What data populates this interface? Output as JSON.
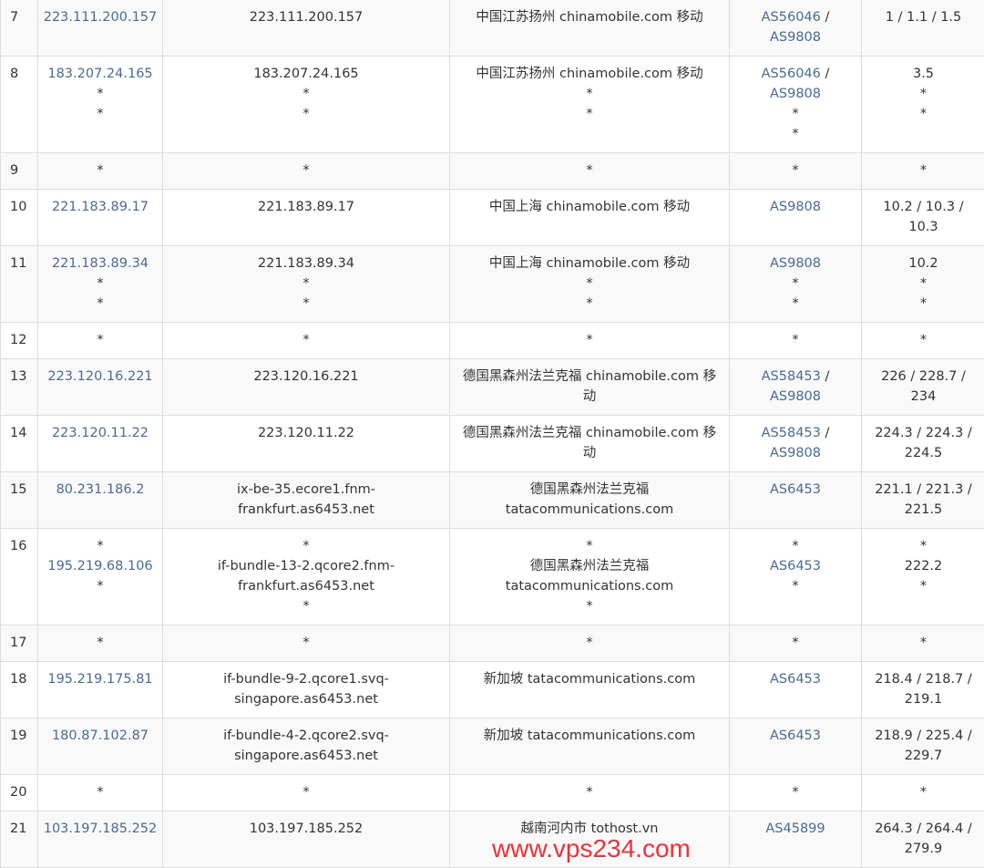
{
  "rows": [
    {
      "hop": "7",
      "ip": [
        "223.111.200.157"
      ],
      "host": [
        "223.111.200.157"
      ],
      "geo": [
        "中国江苏扬州 chinamobile.com 移动"
      ],
      "asn": [
        "AS56046 /",
        "AS9808"
      ],
      "rtt": [
        "1 / 1.1 / 1.5"
      ]
    },
    {
      "hop": "8",
      "ip": [
        "183.207.24.165",
        "*",
        "*"
      ],
      "host": [
        "183.207.24.165",
        "*",
        "*"
      ],
      "geo": [
        "中国江苏扬州 chinamobile.com 移动",
        "*",
        "*"
      ],
      "asn": [
        "AS56046 /",
        "AS9808",
        "*",
        "*"
      ],
      "rtt": [
        "3.5",
        "*",
        "*"
      ]
    },
    {
      "hop": "9",
      "ip": [
        "*"
      ],
      "host": [
        "*"
      ],
      "geo": [
        "*"
      ],
      "asn": [
        "*"
      ],
      "rtt": [
        "*"
      ]
    },
    {
      "hop": "10",
      "ip": [
        "221.183.89.17"
      ],
      "host": [
        "221.183.89.17"
      ],
      "geo": [
        "中国上海 chinamobile.com 移动"
      ],
      "asn": [
        "AS9808"
      ],
      "rtt": [
        "10.2 / 10.3 /",
        "10.3"
      ]
    },
    {
      "hop": "11",
      "ip": [
        "221.183.89.34",
        "*",
        "*"
      ],
      "host": [
        "221.183.89.34",
        "*",
        "*"
      ],
      "geo": [
        "中国上海 chinamobile.com 移动",
        "*",
        "*"
      ],
      "asn": [
        "AS9808",
        "*",
        "*"
      ],
      "rtt": [
        "10.2",
        "*",
        "*"
      ]
    },
    {
      "hop": "12",
      "ip": [
        "*"
      ],
      "host": [
        "*"
      ],
      "geo": [
        "*"
      ],
      "asn": [
        "*"
      ],
      "rtt": [
        "*"
      ]
    },
    {
      "hop": "13",
      "ip": [
        "223.120.16.221"
      ],
      "host": [
        "223.120.16.221"
      ],
      "geo": [
        "德国黑森州法兰克福 chinamobile.com 移",
        "动"
      ],
      "asn": [
        "AS58453 /",
        "AS9808"
      ],
      "rtt": [
        "226 / 228.7 /",
        "234"
      ]
    },
    {
      "hop": "14",
      "ip": [
        "223.120.11.22"
      ],
      "host": [
        "223.120.11.22"
      ],
      "geo": [
        "德国黑森州法兰克福 chinamobile.com 移",
        "动"
      ],
      "asn": [
        "AS58453 /",
        "AS9808"
      ],
      "rtt": [
        "224.3 / 224.3 /",
        "224.5"
      ]
    },
    {
      "hop": "15",
      "ip": [
        "80.231.186.2"
      ],
      "host": [
        "ix-be-35.ecore1.fnm-",
        "frankfurt.as6453.net"
      ],
      "geo": [
        "德国黑森州法兰克福",
        "tatacommunications.com"
      ],
      "asn": [
        "AS6453"
      ],
      "rtt": [
        "221.1 / 221.3 /",
        "221.5"
      ]
    },
    {
      "hop": "16",
      "ip": [
        "*",
        "195.219.68.106",
        "*"
      ],
      "host": [
        "*",
        "if-bundle-13-2.qcore2.fnm-",
        "frankfurt.as6453.net",
        "*"
      ],
      "geo": [
        "*",
        "德国黑森州法兰克福",
        "tatacommunications.com",
        "*"
      ],
      "asn": [
        "*",
        "AS6453",
        "*"
      ],
      "rtt": [
        "*",
        "222.2",
        "*"
      ]
    },
    {
      "hop": "17",
      "ip": [
        "*"
      ],
      "host": [
        "*"
      ],
      "geo": [
        "*"
      ],
      "asn": [
        "*"
      ],
      "rtt": [
        "*"
      ]
    },
    {
      "hop": "18",
      "ip": [
        "195.219.175.81"
      ],
      "host": [
        "if-bundle-9-2.qcore1.svq-",
        "singapore.as6453.net"
      ],
      "geo": [
        "新加坡 tatacommunications.com"
      ],
      "asn": [
        "AS6453"
      ],
      "rtt": [
        "218.4 / 218.7 /",
        "219.1"
      ]
    },
    {
      "hop": "19",
      "ip": [
        "180.87.102.87"
      ],
      "host": [
        "if-bundle-4-2.qcore2.svq-",
        "singapore.as6453.net"
      ],
      "geo": [
        "新加坡 tatacommunications.com"
      ],
      "asn": [
        "AS6453"
      ],
      "rtt": [
        "218.9 / 225.4 /",
        "229.7"
      ]
    },
    {
      "hop": "20",
      "ip": [
        "*"
      ],
      "host": [
        "*"
      ],
      "geo": [
        "*"
      ],
      "asn": [
        "*"
      ],
      "rtt": [
        "*"
      ]
    },
    {
      "hop": "21",
      "ip": [
        "103.197.185.252"
      ],
      "host": [
        "103.197.185.252"
      ],
      "geo": [
        "越南河内市 tothost.vn"
      ],
      "asn": [
        "AS45899"
      ],
      "rtt": [
        "264.3 / 264.4 /",
        "279.9"
      ]
    }
  ],
  "watermark": "www.vps234.com",
  "colors": {
    "link": "#4a6a94",
    "watermark": "#e8333a",
    "stripe": "#f9f9f9"
  }
}
